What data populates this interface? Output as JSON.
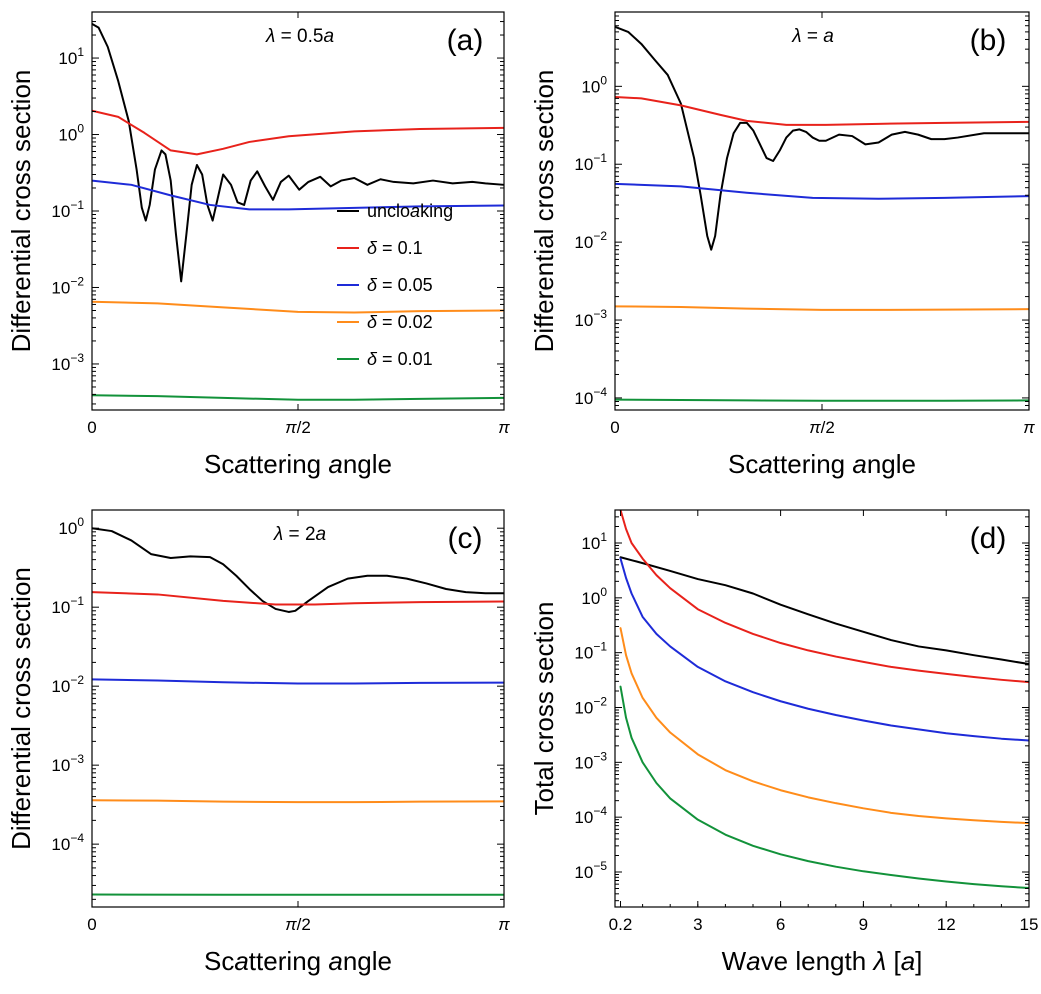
{
  "chart_data": [
    {
      "panel": "(a)",
      "type": "line",
      "lambda_label": "λ = 0.5a",
      "xlabel": "Scattering angle",
      "ylabel": "Differential cross section",
      "yscale": "log",
      "xlim": [
        0,
        3.14159
      ],
      "ylim": [
        0.00025,
        40
      ],
      "x_ticks": [
        {
          "value": 0,
          "label": "0"
        },
        {
          "value": 1.5708,
          "label": "π/2"
        },
        {
          "value": 3.14159,
          "label": "π"
        }
      ],
      "y_ticks": [
        {
          "value": 0.001,
          "label": "10^-3"
        },
        {
          "value": 0.01,
          "label": "10^-2"
        },
        {
          "value": 0.1,
          "label": "10^-1"
        },
        {
          "value": 1,
          "label": "10^0"
        },
        {
          "value": 10,
          "label": "10^1"
        }
      ],
      "legend": {
        "placement": "center-right"
      },
      "series": [
        {
          "name": "uncloaking",
          "color": "#000000",
          "x": [
            0,
            0.05,
            0.12,
            0.2,
            0.28,
            0.34,
            0.38,
            0.41,
            0.44,
            0.48,
            0.53,
            0.56,
            0.6,
            0.64,
            0.68,
            0.72,
            0.76,
            0.8,
            0.84,
            0.88,
            0.92,
            0.96,
            1.0,
            1.06,
            1.11,
            1.16,
            1.21,
            1.26,
            1.32,
            1.38,
            1.44,
            1.5,
            1.58,
            1.65,
            1.74,
            1.82,
            1.9,
            2.0,
            2.1,
            2.2,
            2.3,
            2.45,
            2.6,
            2.75,
            2.9,
            3.0,
            3.14
          ],
          "y": [
            28,
            25,
            14,
            5,
            1.5,
            0.35,
            0.11,
            0.075,
            0.12,
            0.35,
            0.62,
            0.55,
            0.25,
            0.05,
            0.012,
            0.05,
            0.22,
            0.4,
            0.3,
            0.12,
            0.075,
            0.15,
            0.3,
            0.22,
            0.13,
            0.12,
            0.25,
            0.33,
            0.21,
            0.14,
            0.24,
            0.29,
            0.19,
            0.24,
            0.28,
            0.21,
            0.25,
            0.27,
            0.22,
            0.26,
            0.24,
            0.23,
            0.25,
            0.23,
            0.24,
            0.23,
            0.22
          ]
        },
        {
          "name": "δ = 0.1",
          "color": "#e8221b",
          "x": [
            0,
            0.2,
            0.4,
            0.6,
            0.8,
            1.0,
            1.2,
            1.5,
            2.0,
            2.5,
            3.14
          ],
          "y": [
            2.05,
            1.7,
            1.05,
            0.62,
            0.55,
            0.65,
            0.8,
            0.95,
            1.1,
            1.18,
            1.22
          ]
        },
        {
          "name": "δ = 0.05",
          "color": "#1e2bd8",
          "x": [
            0,
            0.3,
            0.6,
            0.9,
            1.2,
            1.5,
            2.0,
            2.5,
            3.14
          ],
          "y": [
            0.25,
            0.22,
            0.16,
            0.12,
            0.105,
            0.105,
            0.11,
            0.115,
            0.118
          ]
        },
        {
          "name": "δ = 0.02",
          "color": "#ff8c1a",
          "x": [
            0,
            0.5,
            1.0,
            1.57,
            2.0,
            2.5,
            3.14
          ],
          "y": [
            0.0065,
            0.0062,
            0.0055,
            0.0048,
            0.0047,
            0.0049,
            0.005
          ]
        },
        {
          "name": "δ = 0.01",
          "color": "#12923a",
          "x": [
            0,
            0.5,
            1.0,
            1.57,
            2.0,
            2.5,
            3.14
          ],
          "y": [
            0.00039,
            0.00038,
            0.00036,
            0.00034,
            0.00034,
            0.00035,
            0.00036
          ]
        }
      ]
    },
    {
      "panel": "(b)",
      "type": "line",
      "lambda_label": "λ = a",
      "xlabel": "Scattering angle",
      "ylabel": "Differential cross section",
      "yscale": "log",
      "xlim": [
        0,
        3.14159
      ],
      "ylim": [
        7e-05,
        9
      ],
      "x_ticks": [
        {
          "value": 0,
          "label": "0"
        },
        {
          "value": 1.5708,
          "label": "π/2"
        },
        {
          "value": 3.14159,
          "label": "π"
        }
      ],
      "y_ticks": [
        {
          "value": 0.0001,
          "label": "10^-4"
        },
        {
          "value": 0.001,
          "label": "10^-3"
        },
        {
          "value": 0.01,
          "label": "10^-2"
        },
        {
          "value": 0.1,
          "label": "10^-1"
        },
        {
          "value": 1,
          "label": "10^0"
        }
      ],
      "series": [
        {
          "name": "uncloaking",
          "color": "#000000",
          "x": [
            0,
            0.1,
            0.2,
            0.3,
            0.4,
            0.5,
            0.6,
            0.65,
            0.7,
            0.73,
            0.76,
            0.8,
            0.85,
            0.9,
            0.95,
            1.0,
            1.05,
            1.1,
            1.15,
            1.2,
            1.25,
            1.3,
            1.35,
            1.4,
            1.45,
            1.5,
            1.55,
            1.6,
            1.7,
            1.8,
            1.9,
            2.0,
            2.1,
            2.2,
            2.3,
            2.4,
            2.5,
            2.6,
            2.8,
            3.0,
            3.14
          ],
          "y": [
            5.8,
            5,
            3.5,
            2.2,
            1.4,
            0.6,
            0.12,
            0.04,
            0.012,
            0.008,
            0.012,
            0.04,
            0.12,
            0.25,
            0.34,
            0.34,
            0.27,
            0.18,
            0.12,
            0.11,
            0.15,
            0.22,
            0.27,
            0.28,
            0.26,
            0.22,
            0.2,
            0.2,
            0.24,
            0.23,
            0.18,
            0.19,
            0.24,
            0.26,
            0.24,
            0.21,
            0.21,
            0.22,
            0.25,
            0.25,
            0.25
          ]
        },
        {
          "name": "δ = 0.1",
          "color": "#e8221b",
          "x": [
            0,
            0.2,
            0.5,
            0.8,
            1.0,
            1.3,
            1.6,
            2.0,
            2.5,
            3.14
          ],
          "y": [
            0.73,
            0.7,
            0.57,
            0.43,
            0.36,
            0.32,
            0.32,
            0.33,
            0.34,
            0.35
          ]
        },
        {
          "name": "δ = 0.05",
          "color": "#1e2bd8",
          "x": [
            0,
            0.5,
            1.0,
            1.5,
            2.0,
            2.5,
            3.14
          ],
          "y": [
            0.056,
            0.052,
            0.043,
            0.037,
            0.036,
            0.037,
            0.039
          ]
        },
        {
          "name": "δ = 0.02",
          "color": "#ff8c1a",
          "x": [
            0,
            0.5,
            1.0,
            1.57,
            2.0,
            2.5,
            3.14
          ],
          "y": [
            0.0015,
            0.00147,
            0.0014,
            0.00135,
            0.00135,
            0.00136,
            0.00138
          ]
        },
        {
          "name": "δ = 0.01",
          "color": "#12923a",
          "x": [
            0,
            0.5,
            1.0,
            1.57,
            2.0,
            2.5,
            3.14
          ],
          "y": [
            9.5e-05,
            9.4e-05,
            9.3e-05,
            9.2e-05,
            9.2e-05,
            9.2e-05,
            9.3e-05
          ]
        }
      ]
    },
    {
      "panel": "(c)",
      "type": "line",
      "lambda_label": "λ = 2a",
      "xlabel": "Scattering angle",
      "ylabel": "Differential cross section",
      "yscale": "log",
      "xlim": [
        0,
        3.14159
      ],
      "ylim": [
        1.6e-05,
        1.7
      ],
      "x_ticks": [
        {
          "value": 0,
          "label": "0"
        },
        {
          "value": 1.5708,
          "label": "π/2"
        },
        {
          "value": 3.14159,
          "label": "π"
        }
      ],
      "y_ticks": [
        {
          "value": 0.0001,
          "label": "10^-4"
        },
        {
          "value": 0.001,
          "label": "10^-3"
        },
        {
          "value": 0.01,
          "label": "10^-2"
        },
        {
          "value": 0.1,
          "label": "10^-1"
        },
        {
          "value": 1,
          "label": "10^0"
        }
      ],
      "series": [
        {
          "name": "uncloaking",
          "color": "#000000",
          "x": [
            0,
            0.15,
            0.3,
            0.45,
            0.6,
            0.75,
            0.9,
            1.0,
            1.1,
            1.2,
            1.3,
            1.4,
            1.5,
            1.55,
            1.65,
            1.8,
            1.95,
            2.1,
            2.25,
            2.4,
            2.55,
            2.7,
            2.85,
            3.0,
            3.14
          ],
          "y": [
            1.0,
            0.92,
            0.7,
            0.47,
            0.42,
            0.44,
            0.43,
            0.35,
            0.25,
            0.17,
            0.12,
            0.095,
            0.087,
            0.09,
            0.12,
            0.18,
            0.23,
            0.25,
            0.25,
            0.23,
            0.2,
            0.17,
            0.155,
            0.15,
            0.15
          ]
        },
        {
          "name": "δ = 0.1",
          "color": "#e8221b",
          "x": [
            0,
            0.5,
            1.0,
            1.4,
            1.7,
            2.0,
            2.5,
            3.14
          ],
          "y": [
            0.155,
            0.145,
            0.12,
            0.108,
            0.108,
            0.112,
            0.116,
            0.118
          ]
        },
        {
          "name": "δ = 0.05",
          "color": "#1e2bd8",
          "x": [
            0,
            0.5,
            1.0,
            1.57,
            2.0,
            2.5,
            3.14
          ],
          "y": [
            0.0122,
            0.0118,
            0.0112,
            0.0108,
            0.0108,
            0.011,
            0.0111
          ]
        },
        {
          "name": "δ = 0.02",
          "color": "#ff8c1a",
          "x": [
            0,
            0.5,
            1.0,
            1.57,
            2.0,
            2.5,
            3.14
          ],
          "y": [
            0.00036,
            0.000355,
            0.000345,
            0.00034,
            0.00034,
            0.000345,
            0.000348
          ]
        },
        {
          "name": "δ = 0.01",
          "color": "#12923a",
          "x": [
            0,
            1.0,
            2.0,
            3.14
          ],
          "y": [
            2.3e-05,
            2.29e-05,
            2.29e-05,
            2.29e-05
          ]
        }
      ]
    },
    {
      "panel": "(d)",
      "type": "line",
      "xlabel": "Wave length λ [a]",
      "ylabel": "Total cross section",
      "yscale": "log",
      "xlim": [
        0,
        15
      ],
      "ylim": [
        2.3e-06,
        40
      ],
      "x_ticks": [
        {
          "value": 0.2,
          "label": "0.2"
        },
        {
          "value": 3,
          "label": "3"
        },
        {
          "value": 6,
          "label": "6"
        },
        {
          "value": 9,
          "label": "9"
        },
        {
          "value": 12,
          "label": "12"
        },
        {
          "value": 15,
          "label": "15"
        }
      ],
      "y_ticks": [
        {
          "value": 1e-05,
          "label": "10^-5"
        },
        {
          "value": 0.0001,
          "label": "10^-4"
        },
        {
          "value": 0.001,
          "label": "10^-3"
        },
        {
          "value": 0.01,
          "label": "10^-2"
        },
        {
          "value": 0.1,
          "label": "10^-1"
        },
        {
          "value": 1,
          "label": "10^0"
        },
        {
          "value": 10,
          "label": "10^1"
        }
      ],
      "series": [
        {
          "name": "uncloaking",
          "color": "#000000",
          "x": [
            0.2,
            1.0,
            2.0,
            3.0,
            4.0,
            5.0,
            6.0,
            7.0,
            8.0,
            9.0,
            10.0,
            11.0,
            12.0,
            13.0,
            14.0,
            15.0
          ],
          "y": [
            5.5,
            4.3,
            3.1,
            2.2,
            1.7,
            1.2,
            0.75,
            0.5,
            0.34,
            0.24,
            0.17,
            0.13,
            0.11,
            0.09,
            0.075,
            0.062
          ]
        },
        {
          "name": "δ = 0.1",
          "color": "#e8221b",
          "x": [
            0.2,
            0.4,
            0.6,
            1.0,
            1.5,
            2.0,
            3.0,
            4.0,
            5.0,
            6.0,
            7.0,
            8.0,
            9.0,
            10.0,
            11.0,
            12.0,
            13.0,
            14.0,
            15.0
          ],
          "y": [
            40,
            18,
            10,
            5.2,
            2.6,
            1.5,
            0.62,
            0.35,
            0.22,
            0.15,
            0.11,
            0.085,
            0.068,
            0.055,
            0.047,
            0.041,
            0.036,
            0.032,
            0.029
          ]
        },
        {
          "name": "δ = 0.05",
          "color": "#1e2bd8",
          "x": [
            0.2,
            0.4,
            0.6,
            1.0,
            1.5,
            2.0,
            3.0,
            4.0,
            5.0,
            6.0,
            7.0,
            8.0,
            9.0,
            10.0,
            11.0,
            12.0,
            13.0,
            14.0,
            15.0
          ],
          "y": [
            5.2,
            2.3,
            1.2,
            0.45,
            0.22,
            0.13,
            0.055,
            0.03,
            0.019,
            0.013,
            0.0095,
            0.0073,
            0.0058,
            0.0047,
            0.004,
            0.0034,
            0.003,
            0.0027,
            0.0025
          ]
        },
        {
          "name": "δ = 0.02",
          "color": "#ff8c1a",
          "x": [
            0.2,
            0.4,
            0.6,
            1.0,
            1.5,
            2.0,
            3.0,
            4.0,
            5.0,
            6.0,
            7.0,
            8.0,
            9.0,
            10.0,
            11.0,
            12.0,
            13.0,
            14.0,
            15.0
          ],
          "y": [
            0.28,
            0.09,
            0.042,
            0.015,
            0.0065,
            0.0035,
            0.0014,
            0.00072,
            0.00045,
            0.00031,
            0.00023,
            0.00018,
            0.000145,
            0.00012,
            0.000105,
            9.5e-05,
            8.8e-05,
            8.2e-05,
            7.8e-05
          ]
        },
        {
          "name": "δ = 0.01",
          "color": "#12923a",
          "x": [
            0.2,
            0.4,
            0.6,
            1.0,
            1.5,
            2.0,
            3.0,
            4.0,
            5.0,
            6.0,
            7.0,
            8.0,
            9.0,
            10.0,
            11.0,
            12.0,
            13.0,
            14.0,
            15.0
          ],
          "y": [
            0.024,
            0.0065,
            0.0028,
            0.001,
            0.00042,
            0.00022,
            9e-05,
            4.8e-05,
            3e-05,
            2.1e-05,
            1.58e-05,
            1.25e-05,
            1.03e-05,
            8.8e-06,
            7.6e-06,
            6.7e-06,
            6e-06,
            5.5e-06,
            5.1e-06
          ]
        }
      ]
    }
  ]
}
